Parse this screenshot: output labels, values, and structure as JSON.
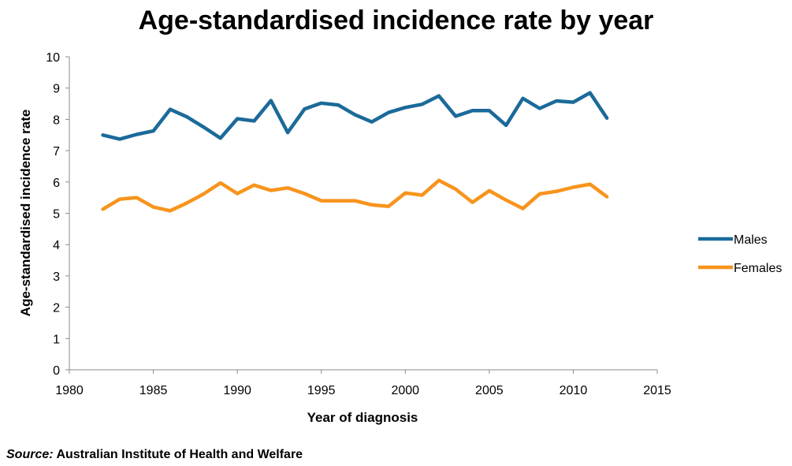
{
  "chart_data": {
    "type": "line",
    "title": "Age-standardised incidence rate by year",
    "xlabel": "Year of diagnosis",
    "ylabel": "Age-standardised incidence rate",
    "xlim": [
      1980,
      2015
    ],
    "ylim": [
      0,
      10
    ],
    "x_ticks": [
      1980,
      1985,
      1990,
      1995,
      2000,
      2005,
      2010,
      2015
    ],
    "y_ticks": [
      0,
      1,
      2,
      3,
      4,
      5,
      6,
      7,
      8,
      9,
      10
    ],
    "grid": false,
    "legend_position": "right",
    "x": [
      1982,
      1983,
      1984,
      1985,
      1986,
      1987,
      1988,
      1989,
      1990,
      1991,
      1992,
      1993,
      1994,
      1995,
      1996,
      1997,
      1998,
      1999,
      2000,
      2001,
      2002,
      2003,
      2004,
      2005,
      2006,
      2007,
      2008,
      2009,
      2010,
      2011,
      2012
    ],
    "series": [
      {
        "name": "Males",
        "color": "#1b6a9a",
        "values": [
          7.5,
          7.37,
          7.52,
          7.63,
          8.32,
          8.08,
          7.75,
          7.4,
          8.02,
          7.95,
          8.6,
          7.58,
          8.33,
          8.52,
          8.46,
          8.15,
          7.92,
          8.22,
          8.38,
          8.48,
          8.75,
          8.1,
          8.28,
          8.28,
          7.81,
          8.67,
          8.35,
          8.59,
          8.55,
          8.85,
          8.04
        ]
      },
      {
        "name": "Females",
        "color": "#f7941d",
        "values": [
          5.13,
          5.45,
          5.5,
          5.2,
          5.08,
          5.33,
          5.62,
          5.97,
          5.63,
          5.9,
          5.73,
          5.81,
          5.63,
          5.4,
          5.4,
          5.4,
          5.27,
          5.22,
          5.65,
          5.58,
          6.05,
          5.77,
          5.35,
          5.72,
          5.42,
          5.15,
          5.62,
          5.7,
          5.83,
          5.93,
          5.53
        ]
      }
    ]
  },
  "source": {
    "label": "Source:",
    "text": "Australian Institute of Health and Welfare"
  }
}
